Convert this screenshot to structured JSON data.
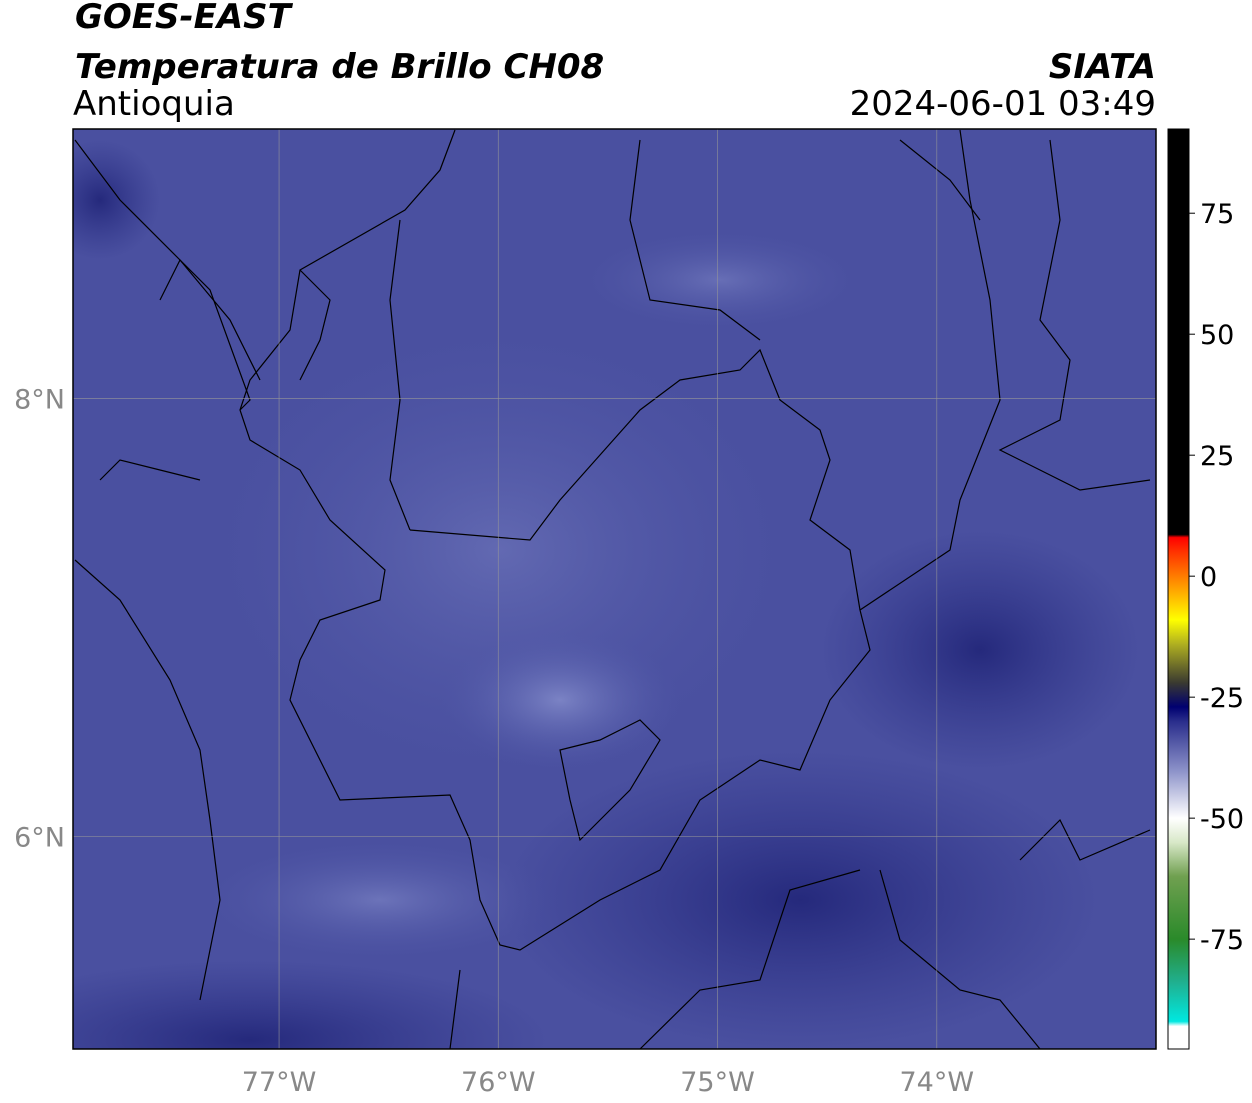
{
  "header": {
    "title": "GOES-EAST",
    "subtitle": "Temperatura de Brillo CH08",
    "region": "Antioquia",
    "source": "SIATA",
    "datetime": "2024-06-01 03:49"
  },
  "map": {
    "xlim": [
      -77.94,
      -73.0
    ],
    "ylim": [
      5.03,
      9.23
    ],
    "xticks": [
      {
        "value": -77,
        "label": "77°W"
      },
      {
        "value": -76,
        "label": "76°W"
      },
      {
        "value": -75,
        "label": "75°W"
      },
      {
        "value": -74,
        "label": "74°W"
      }
    ],
    "yticks": [
      {
        "value": 6,
        "label": "6°N"
      },
      {
        "value": 8,
        "label": "8°N"
      }
    ],
    "grid": true,
    "colorbar": {
      "lim": [
        -97.7,
        92.4
      ],
      "ticks": [
        -75,
        -50,
        -25,
        0,
        25,
        50,
        75
      ],
      "colormap": [
        [
          -97.7,
          "#ffffff"
        ],
        [
          -93,
          "#ffffff"
        ],
        [
          -92,
          "#00e8e0"
        ],
        [
          -84,
          "#20b090"
        ],
        [
          -75,
          "#2a8a2a"
        ],
        [
          -62,
          "#70a050"
        ],
        [
          -55,
          "#d8e8c8"
        ],
        [
          -50,
          "#ffffff"
        ],
        [
          -40,
          "#8a90c8"
        ],
        [
          -30,
          "#2a2e8c"
        ],
        [
          -27,
          "#000070"
        ],
        [
          -22,
          "#3a3a30"
        ],
        [
          -14,
          "#b0b020"
        ],
        [
          -9,
          "#ffff00"
        ],
        [
          -2,
          "#ff9900"
        ],
        [
          5,
          "#ff3300"
        ],
        [
          8,
          "#ff0000"
        ],
        [
          8.6,
          "#000000"
        ],
        [
          92.4,
          "#000000"
        ]
      ]
    }
  }
}
